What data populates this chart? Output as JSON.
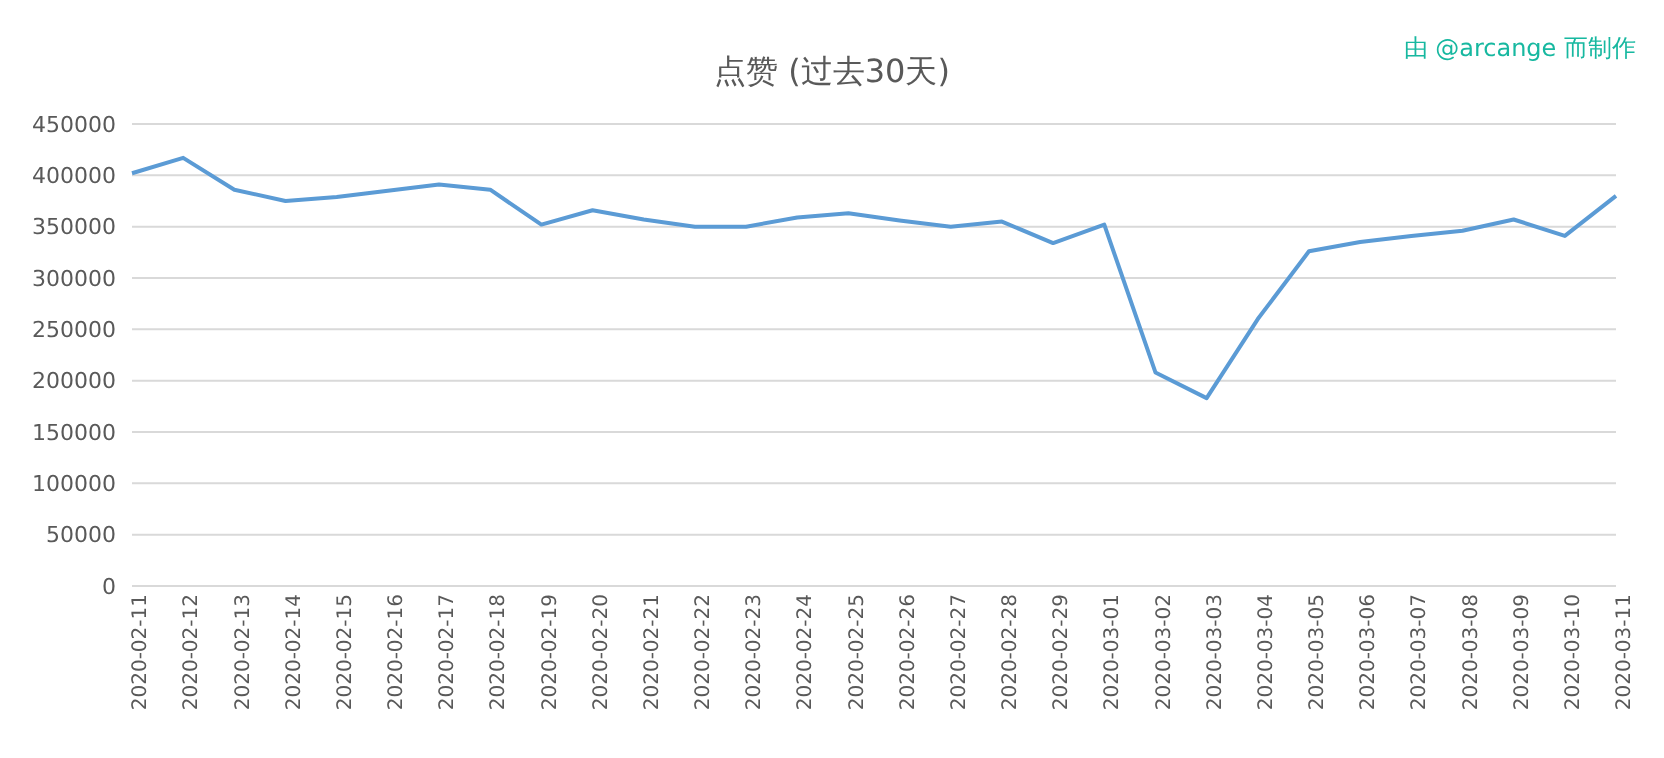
{
  "chart_data": {
    "type": "line",
    "title": "点赞 (过去30天)",
    "annotations": [
      "由 @arcange 而制作"
    ],
    "categories": [
      "2020-02-11",
      "2020-02-12",
      "2020-02-13",
      "2020-02-14",
      "2020-02-15",
      "2020-02-16",
      "2020-02-17",
      "2020-02-18",
      "2020-02-19",
      "2020-02-20",
      "2020-02-21",
      "2020-02-22",
      "2020-02-23",
      "2020-02-24",
      "2020-02-25",
      "2020-02-26",
      "2020-02-27",
      "2020-02-28",
      "2020-02-29",
      "2020-03-01",
      "2020-03-02",
      "2020-03-03",
      "2020-03-04",
      "2020-03-05",
      "2020-03-06",
      "2020-03-07",
      "2020-03-08",
      "2020-03-09",
      "2020-03-10",
      "2020-03-11"
    ],
    "series": [
      {
        "color": "#5b9bd5",
        "values": [
          402000,
          417000,
          386000,
          375000,
          379000,
          385000,
          391000,
          386000,
          352000,
          366000,
          357000,
          350000,
          350000,
          359000,
          363000,
          356000,
          350000,
          355000,
          334000,
          352000,
          208000,
          183000,
          260000,
          326000,
          335000,
          341000,
          346000,
          357000,
          341000,
          380000
        ]
      }
    ],
    "ylim": [
      0,
      450000
    ],
    "yticks": [
      0,
      50000,
      100000,
      150000,
      200000,
      250000,
      300000,
      350000,
      400000,
      450000
    ],
    "grid": "y",
    "marker": "none",
    "line_style": "solid"
  }
}
